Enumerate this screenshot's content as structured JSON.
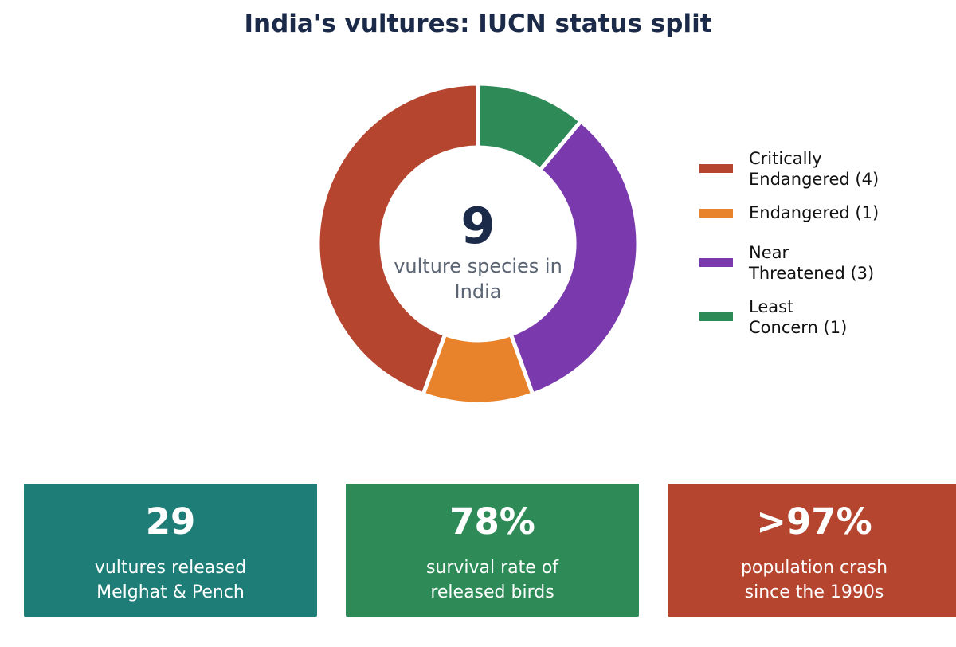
{
  "title": "India's vultures: IUCN status split",
  "center": {
    "number": "9",
    "caption": "vulture species in India"
  },
  "chart_data": {
    "type": "pie",
    "title": "India's vultures: IUCN status split",
    "slices": [
      {
        "label": "Critically Endangered (4)",
        "value": 4,
        "color": "#b5452f"
      },
      {
        "label": "Endangered (1)",
        "value": 1,
        "color": "#e8832c"
      },
      {
        "label": "Near Threatened (3)",
        "value": 3,
        "color": "#7a39ad"
      },
      {
        "label": "Least Concern (1)",
        "value": 1,
        "color": "#2e8b57"
      }
    ],
    "legend_position": "right"
  },
  "legend": {
    "items": [
      {
        "line1": "Critically",
        "line2": "Endangered (4)",
        "color": "#b5452f"
      },
      {
        "line1": "Endangered (1)",
        "line2": "",
        "color": "#e8832c"
      },
      {
        "line1": "Near",
        "line2": "Threatened (3)",
        "color": "#7a39ad"
      },
      {
        "line1": "Least",
        "line2": "Concern (1)",
        "color": "#2e8b57"
      }
    ]
  },
  "stats": [
    {
      "value": "29",
      "line1": "vultures released",
      "line2": "Melghat & Pench",
      "color": "#1e7d76"
    },
    {
      "value": "78%",
      "line1": "survival rate of",
      "line2": "released birds",
      "color": "#2e8b57"
    },
    {
      "value": ">97%",
      "line1": "population crash",
      "line2": "since the 1990s",
      "color": "#b5452f"
    }
  ]
}
